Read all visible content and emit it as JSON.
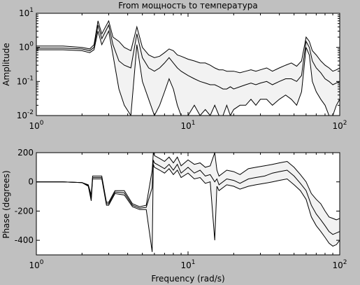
{
  "figure": {
    "background": "#c0c0c0",
    "axes_background": "#ffffff",
    "line_color": "#000000",
    "band_fill": "#f2f2f2"
  },
  "chart_data": [
    {
      "type": "line",
      "title": "From мощность to температура",
      "xlabel": "",
      "ylabel": "Amplitude",
      "xscale": "log",
      "yscale": "log",
      "xlim": [
        1,
        100
      ],
      "ylim": [
        0.01,
        10
      ],
      "grid": false,
      "x_ticks": [
        1,
        10,
        100
      ],
      "y_ticks": [
        0.01,
        0.1,
        1,
        10
      ],
      "x_tick_labels": [
        {
          "base": "10",
          "exp": "0"
        },
        {
          "base": "10",
          "exp": "1"
        },
        {
          "base": "10",
          "exp": "2"
        }
      ],
      "y_tick_labels": [
        {
          "base": "10",
          "exp": "-2"
        },
        {
          "base": "10",
          "exp": "-1"
        },
        {
          "base": "10",
          "exp": "0"
        },
        {
          "base": "10",
          "exp": "1"
        }
      ],
      "x": [
        1,
        1.5,
        2,
        2.25,
        2.4,
        2.55,
        2.7,
        3.0,
        3.2,
        3.5,
        3.8,
        4.2,
        4.6,
        5.0,
        5.5,
        6.0,
        6.5,
        7.0,
        7.5,
        8.0,
        8.5,
        9.0,
        10,
        11,
        12,
        13,
        14,
        15,
        16,
        17,
        18,
        19,
        20,
        22,
        24,
        26,
        28,
        30,
        33,
        36,
        40,
        44,
        48,
        52,
        56,
        60,
        63,
        66,
        70,
        75,
        80,
        85,
        90,
        95,
        100
      ],
      "series": [
        {
          "values": [
            1.1,
            1.1,
            1.0,
            0.9,
            1.2,
            6.0,
            2.5,
            6.0,
            2.0,
            1.5,
            1.0,
            0.8,
            4.0,
            1.0,
            0.6,
            0.5,
            0.55,
            0.7,
            0.9,
            0.8,
            0.6,
            0.55,
            0.45,
            0.4,
            0.35,
            0.35,
            0.3,
            0.25,
            0.22,
            0.22,
            0.2,
            0.2,
            0.2,
            0.18,
            0.2,
            0.22,
            0.2,
            0.22,
            0.25,
            0.2,
            0.25,
            0.3,
            0.35,
            0.28,
            0.4,
            2.0,
            1.5,
            0.8,
            0.6,
            0.4,
            0.3,
            0.25,
            0.2,
            0.22,
            0.25
          ]
        },
        {
          "values": [
            0.95,
            0.95,
            0.9,
            0.8,
            1.0,
            4.5,
            1.8,
            4.5,
            1.2,
            0.4,
            0.3,
            0.25,
            2.5,
            0.5,
            0.25,
            0.2,
            0.25,
            0.35,
            0.5,
            0.35,
            0.25,
            0.2,
            0.15,
            0.12,
            0.1,
            0.09,
            0.08,
            0.08,
            0.07,
            0.06,
            0.06,
            0.07,
            0.06,
            0.07,
            0.08,
            0.09,
            0.08,
            0.09,
            0.1,
            0.08,
            0.1,
            0.12,
            0.12,
            0.1,
            0.15,
            1.5,
            1.0,
            0.4,
            0.25,
            0.18,
            0.12,
            0.1,
            0.08,
            0.09,
            0.1
          ]
        },
        {
          "values": [
            0.85,
            0.85,
            0.8,
            0.7,
            0.85,
            3.0,
            1.2,
            3.0,
            0.6,
            0.06,
            0.02,
            0.01,
            1.2,
            0.1,
            0.03,
            0.01,
            0.02,
            0.05,
            0.12,
            0.06,
            0.02,
            0.01,
            0.01,
            0.02,
            0.01,
            0.015,
            0.01,
            0.02,
            0.01,
            0.01,
            0.02,
            0.01,
            0.015,
            0.02,
            0.02,
            0.03,
            0.02,
            0.03,
            0.03,
            0.02,
            0.03,
            0.04,
            0.03,
            0.02,
            0.05,
            1.0,
            0.6,
            0.1,
            0.05,
            0.03,
            0.02,
            0.01,
            0.01,
            0.02,
            0.03
          ]
        }
      ]
    },
    {
      "type": "line",
      "title": "",
      "xlabel": "Frequency (rad/s)",
      "ylabel": "Phase (degrees)",
      "xscale": "log",
      "yscale": "linear",
      "xlim": [
        1,
        100
      ],
      "ylim": [
        -500,
        200
      ],
      "grid": false,
      "x_ticks": [
        1,
        10,
        100
      ],
      "y_ticks": [
        -400,
        -200,
        0,
        200
      ],
      "x_tick_labels": [
        {
          "base": "10",
          "exp": "0"
        },
        {
          "base": "10",
          "exp": "1"
        },
        {
          "base": "10",
          "exp": "2"
        }
      ],
      "y_tick_labels": [
        {
          "base": "-400",
          "exp": ""
        },
        {
          "base": "-200",
          "exp": ""
        },
        {
          "base": "0",
          "exp": ""
        },
        {
          "base": "200",
          "exp": ""
        }
      ],
      "x": [
        1,
        1.5,
        2,
        2.2,
        2.3,
        2.35,
        2.7,
        2.9,
        3.0,
        3.3,
        3.8,
        4.3,
        4.8,
        5.3,
        5.8,
        5.9,
        6.0,
        6.5,
        7.0,
        7.5,
        8.0,
        8.5,
        9.0,
        10,
        11,
        12,
        13,
        14,
        15,
        15.5,
        16,
        18,
        20,
        22,
        25,
        28,
        32,
        36,
        40,
        45,
        50,
        55,
        60,
        65,
        70,
        75,
        80,
        85,
        90,
        95,
        100
      ],
      "series": [
        {
          "values": [
            0,
            0,
            -5,
            -20,
            -90,
            40,
            40,
            -140,
            -140,
            -60,
            -60,
            -150,
            -170,
            -160,
            80,
            200,
            180,
            160,
            140,
            170,
            130,
            170,
            110,
            150,
            120,
            130,
            100,
            110,
            200,
            80,
            40,
            80,
            70,
            50,
            90,
            100,
            110,
            120,
            130,
            140,
            100,
            50,
            0,
            -80,
            -120,
            -150,
            -200,
            -240,
            -250,
            -260,
            -250
          ]
        },
        {
          "values": [
            0,
            0,
            -5,
            -25,
            -110,
            30,
            30,
            -150,
            -150,
            -70,
            -75,
            -160,
            -180,
            -175,
            -40,
            150,
            130,
            110,
            90,
            120,
            80,
            120,
            60,
            100,
            60,
            80,
            40,
            50,
            0,
            20,
            -20,
            20,
            10,
            -10,
            20,
            30,
            40,
            60,
            70,
            80,
            40,
            -10,
            -60,
            -160,
            -220,
            -260,
            -300,
            -340,
            -360,
            -350,
            -340
          ]
        },
        {
          "values": [
            0,
            0,
            -5,
            -30,
            -130,
            20,
            20,
            -160,
            -160,
            -80,
            -90,
            -170,
            -190,
            -190,
            -480,
            120,
            100,
            80,
            60,
            90,
            50,
            80,
            30,
            60,
            20,
            30,
            -10,
            0,
            -400,
            -30,
            -60,
            -20,
            -30,
            -50,
            -30,
            -20,
            -10,
            0,
            10,
            20,
            -20,
            -60,
            -120,
            -240,
            -300,
            -340,
            -380,
            -420,
            -440,
            -430,
            -400
          ]
        }
      ]
    }
  ]
}
